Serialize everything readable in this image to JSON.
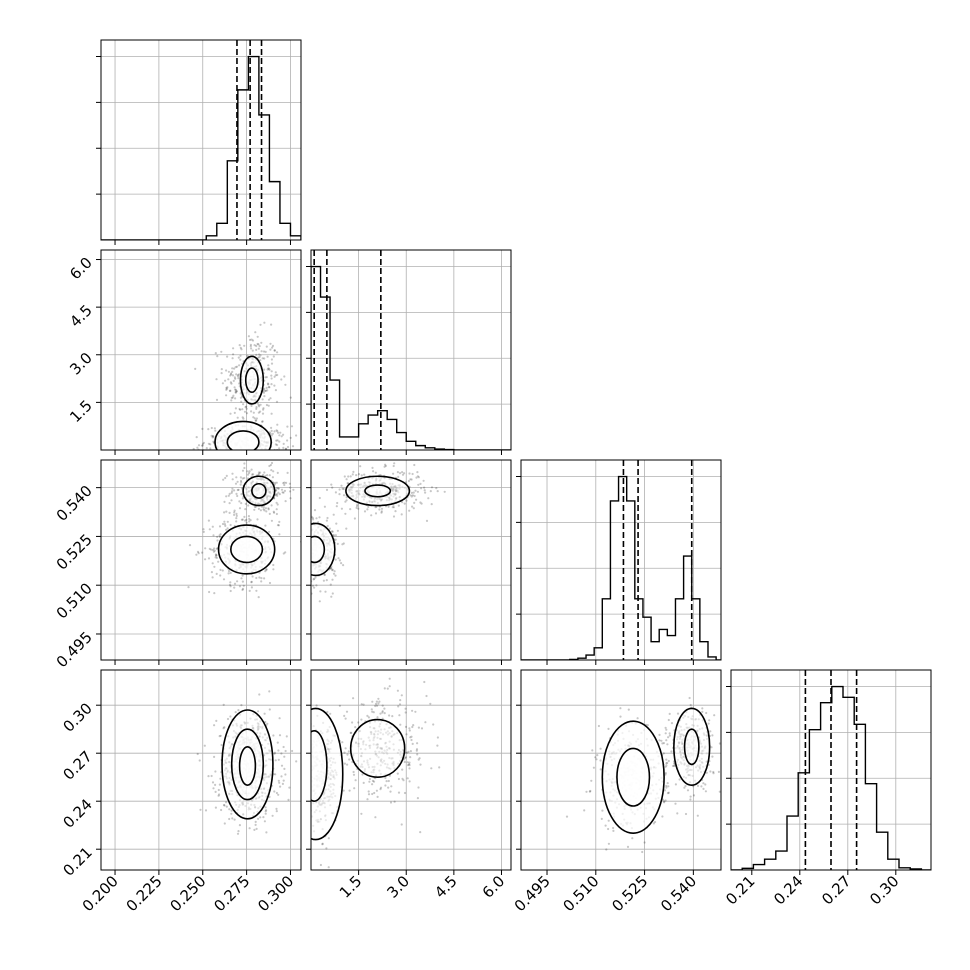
{
  "chart_data": {
    "type": "corner",
    "title": "",
    "n_params": 4,
    "param_labels": [
      "",
      "",
      "",
      ""
    ],
    "ranges": [
      [
        0.192,
        0.306
      ],
      [
        0.0,
        6.3
      ],
      [
        0.487,
        0.5485
      ],
      [
        0.197,
        0.322
      ]
    ],
    "ticks": [
      [
        0.2,
        0.225,
        0.25,
        0.275,
        0.3
      ],
      [
        1.5,
        3.0,
        4.5,
        6.0
      ],
      [
        0.495,
        0.51,
        0.525,
        0.54
      ],
      [
        0.21,
        0.24,
        0.27,
        0.3
      ]
    ],
    "tick_labels": [
      [
        "0.200",
        "0.225",
        "0.250",
        "0.275",
        "0.300"
      ],
      [
        "1.5",
        "3.0",
        "4.5",
        "6.0"
      ],
      [
        "0.495",
        "0.510",
        "0.525",
        "0.540"
      ],
      [
        "0.21",
        "0.24",
        "0.27",
        "0.30"
      ]
    ],
    "grid": true,
    "marginals": [
      {
        "bins": [
          0.192,
          0.198,
          0.204,
          0.21,
          0.216,
          0.222,
          0.228,
          0.234,
          0.24,
          0.246,
          0.252,
          0.258,
          0.264,
          0.27,
          0.276,
          0.282,
          0.288,
          0.294,
          0.3,
          0.306
        ],
        "counts": [
          0,
          0,
          0,
          0,
          0,
          0,
          0,
          0,
          0,
          0,
          1,
          4,
          19,
          36,
          44,
          30,
          14,
          4,
          1
        ],
        "quantiles": [
          0.2695,
          0.277,
          0.2835
        ]
      },
      {
        "bins": [
          0.0,
          0.3,
          0.6,
          0.9,
          1.2,
          1.5,
          1.8,
          2.1,
          2.4,
          2.7,
          3.0,
          3.3,
          3.6,
          3.9,
          4.2,
          4.5,
          4.8,
          5.1,
          5.4,
          5.7,
          6.0,
          6.3
        ],
        "counts": [
          42,
          35,
          16,
          3,
          3,
          6,
          8,
          9,
          7,
          4,
          2,
          1,
          0.5,
          0.2,
          0.1,
          0,
          0,
          0,
          0,
          0,
          0
        ],
        "quantiles": [
          0.1,
          0.5,
          2.2
        ]
      },
      {
        "bins": [
          0.487,
          0.4895,
          0.492,
          0.4945,
          0.497,
          0.4995,
          0.502,
          0.5045,
          0.507,
          0.5095,
          0.512,
          0.5145,
          0.517,
          0.5195,
          0.522,
          0.5245,
          0.527,
          0.5295,
          0.532,
          0.5345,
          0.537,
          0.5395,
          0.542,
          0.5445,
          0.547,
          0.5485
        ],
        "counts": [
          0,
          0,
          0,
          0,
          0,
          0,
          0.1,
          0.3,
          0.8,
          2,
          10,
          26,
          30,
          26,
          10,
          7,
          3,
          5,
          4,
          10,
          17,
          10,
          3,
          0.5,
          0
        ],
        "quantiles": [
          0.5185,
          0.523,
          0.5395
        ]
      },
      {
        "bins": [
          0.197,
          0.204,
          0.211,
          0.218,
          0.225,
          0.232,
          0.239,
          0.246,
          0.253,
          0.26,
          0.267,
          0.274,
          0.281,
          0.288,
          0.295,
          0.302,
          0.309,
          0.316,
          0.322
        ],
        "counts": [
          0,
          0.3,
          1,
          2,
          3.5,
          10,
          18,
          26,
          31,
          34,
          32,
          27,
          16,
          7,
          2,
          0.4,
          0.2,
          0
        ],
        "quantiles": [
          0.2435,
          0.2595,
          0.2755
        ]
      }
    ],
    "scatter_panels": [
      {
        "row": 1,
        "col": 0,
        "x_param": 0,
        "y_param": 1,
        "clusters": [
          {
            "cx": 0.278,
            "cy": 2.2,
            "sx": 0.008,
            "sy": 0.75,
            "n": 320
          },
          {
            "cx": 0.275,
            "cy": 0.25,
            "sx": 0.012,
            "sy": 0.25,
            "n": 330
          }
        ],
        "contours": [
          {
            "cx": 0.278,
            "cy": 2.2,
            "rx": 0.0065,
            "ry": 0.75
          },
          {
            "cx": 0.278,
            "cy": 2.2,
            "rx": 0.0035,
            "ry": 0.38
          },
          {
            "cx": 0.273,
            "cy": 0.25,
            "rx": 0.016,
            "ry": 0.65
          },
          {
            "cx": 0.273,
            "cy": 0.25,
            "rx": 0.009,
            "ry": 0.35
          }
        ]
      },
      {
        "row": 2,
        "col": 0,
        "x_param": 0,
        "y_param": 2,
        "clusters": [
          {
            "cx": 0.282,
            "cy": 0.539,
            "sx": 0.008,
            "sy": 0.0035,
            "n": 300
          },
          {
            "cx": 0.274,
            "cy": 0.521,
            "sx": 0.01,
            "sy": 0.0055,
            "n": 380
          }
        ],
        "contours": [
          {
            "cx": 0.282,
            "cy": 0.539,
            "rx": 0.009,
            "ry": 0.0045
          },
          {
            "cx": 0.282,
            "cy": 0.539,
            "rx": 0.004,
            "ry": 0.0022
          },
          {
            "cx": 0.275,
            "cy": 0.521,
            "rx": 0.016,
            "ry": 0.0075
          },
          {
            "cx": 0.275,
            "cy": 0.521,
            "rx": 0.009,
            "ry": 0.004
          }
        ]
      },
      {
        "row": 2,
        "col": 1,
        "x_param": 1,
        "y_param": 2,
        "clusters": [
          {
            "cx": 2.2,
            "cy": 0.539,
            "sx": 0.7,
            "sy": 0.0032,
            "n": 360
          },
          {
            "cx": 0.25,
            "cy": 0.521,
            "sx": 0.3,
            "sy": 0.0055,
            "n": 320
          }
        ],
        "contours": [
          {
            "cx": 2.1,
            "cy": 0.539,
            "rx": 1.0,
            "ry": 0.0045
          },
          {
            "cx": 2.1,
            "cy": 0.539,
            "rx": 0.4,
            "ry": 0.0018
          },
          {
            "cx": 0.15,
            "cy": 0.521,
            "rx": 0.6,
            "ry": 0.008
          },
          {
            "cx": 0.12,
            "cy": 0.521,
            "rx": 0.3,
            "ry": 0.004
          }
        ]
      },
      {
        "row": 3,
        "col": 0,
        "x_param": 0,
        "y_param": 3,
        "clusters": [
          {
            "cx": 0.276,
            "cy": 0.262,
            "sx": 0.009,
            "sy": 0.016,
            "n": 650
          }
        ],
        "contours": [
          {
            "cx": 0.2755,
            "cy": 0.263,
            "rx": 0.0145,
            "ry": 0.034
          },
          {
            "cx": 0.2755,
            "cy": 0.263,
            "rx": 0.009,
            "ry": 0.022
          },
          {
            "cx": 0.2755,
            "cy": 0.262,
            "rx": 0.0045,
            "ry": 0.012
          }
        ]
      },
      {
        "row": 3,
        "col": 1,
        "x_param": 1,
        "y_param": 3,
        "clusters": [
          {
            "cx": 2.2,
            "cy": 0.272,
            "sx": 0.75,
            "sy": 0.015,
            "n": 330
          },
          {
            "cx": 0.25,
            "cy": 0.255,
            "sx": 0.3,
            "sy": 0.016,
            "n": 330
          }
        ],
        "contours": [
          {
            "cx": 2.1,
            "cy": 0.273,
            "rx": 0.85,
            "ry": 0.018
          },
          {
            "cx": 0.15,
            "cy": 0.257,
            "rx": 0.85,
            "ry": 0.041
          },
          {
            "cx": 0.1,
            "cy": 0.262,
            "rx": 0.4,
            "ry": 0.022
          }
        ]
      },
      {
        "row": 3,
        "col": 2,
        "x_param": 2,
        "y_param": 3,
        "clusters": [
          {
            "cx": 0.539,
            "cy": 0.273,
            "sx": 0.0035,
            "sy": 0.013,
            "n": 300
          },
          {
            "cx": 0.521,
            "cy": 0.254,
            "sx": 0.0055,
            "sy": 0.016,
            "n": 360
          }
        ],
        "contours": [
          {
            "cx": 0.5395,
            "cy": 0.274,
            "rx": 0.0055,
            "ry": 0.024
          },
          {
            "cx": 0.5395,
            "cy": 0.274,
            "rx": 0.0022,
            "ry": 0.011
          },
          {
            "cx": 0.5215,
            "cy": 0.255,
            "rx": 0.0095,
            "ry": 0.035
          },
          {
            "cx": 0.5215,
            "cy": 0.255,
            "rx": 0.005,
            "ry": 0.018
          }
        ]
      }
    ],
    "colors": {
      "points": "#000000",
      "lines": "#000000",
      "grid": "#b0b0b0",
      "background": "#ffffff"
    }
  }
}
